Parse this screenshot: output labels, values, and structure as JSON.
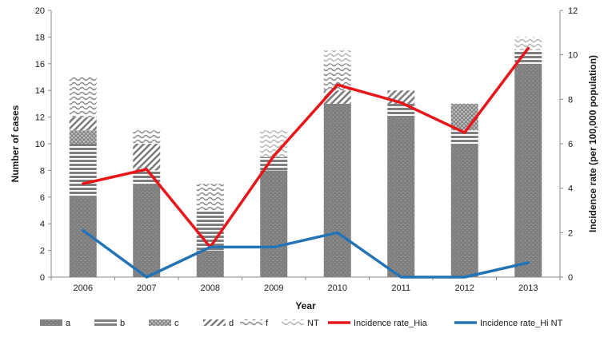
{
  "chart_data": {
    "type": "bar",
    "stacked": true,
    "secondary_axis": true,
    "x": [
      "2006",
      "2007",
      "2008",
      "2009",
      "2010",
      "2011",
      "2012",
      "2013"
    ],
    "xlabel": "Year",
    "ylabel": "Number of cases",
    "y2label": "Incidence rate (per 100,000 population)",
    "ylim": [
      0,
      20
    ],
    "y2lim": [
      0,
      12
    ],
    "yticks": [
      "0",
      "2",
      "4",
      "6",
      "8",
      "10",
      "12",
      "14",
      "16",
      "18",
      "20"
    ],
    "y2ticks": [
      "0",
      "2",
      "4",
      "6",
      "8",
      "10",
      "12"
    ],
    "grid": false,
    "legend_position": "bottom",
    "series": [
      {
        "name": "a",
        "kind": "bar",
        "pattern": "dots",
        "color": "#7f7f7f",
        "values": [
          6,
          7,
          2,
          8,
          13,
          12,
          10,
          16
        ]
      },
      {
        "name": "b",
        "kind": "bar",
        "pattern": "hstripes",
        "color": "#7f7f7f",
        "values": [
          4,
          1,
          3,
          1,
          0,
          1,
          1,
          1
        ]
      },
      {
        "name": "c",
        "kind": "bar",
        "pattern": "cross",
        "color": "#8c8c8c",
        "values": [
          1,
          0,
          0,
          0,
          0,
          0,
          2,
          0
        ]
      },
      {
        "name": "d",
        "kind": "bar",
        "pattern": "diagonal",
        "color": "#7f7f7f",
        "values": [
          1,
          2,
          0,
          0,
          1,
          1,
          0,
          0
        ]
      },
      {
        "name": "f",
        "kind": "bar",
        "pattern": "wave",
        "color": "#8c8c8c",
        "values": [
          3,
          1,
          2,
          0,
          2,
          0,
          0,
          0
        ]
      },
      {
        "name": "NT",
        "kind": "bar",
        "pattern": "lightwave",
        "color": "#b3b3b3",
        "values": [
          0,
          0,
          0,
          2,
          1,
          0,
          0,
          1
        ]
      },
      {
        "name": "Incidence rate_Hia",
        "kind": "line",
        "axis": "right",
        "color": "#e8161b",
        "values": [
          4.2,
          4.85,
          1.35,
          5.45,
          8.65,
          7.85,
          6.5,
          10.3
        ]
      },
      {
        "name": "Incidence rate_Hi NT",
        "kind": "line",
        "axis": "right",
        "color": "#2474b5",
        "values": [
          2.1,
          0.0,
          1.35,
          1.35,
          2.0,
          0.0,
          0.0,
          0.65
        ]
      }
    ]
  }
}
